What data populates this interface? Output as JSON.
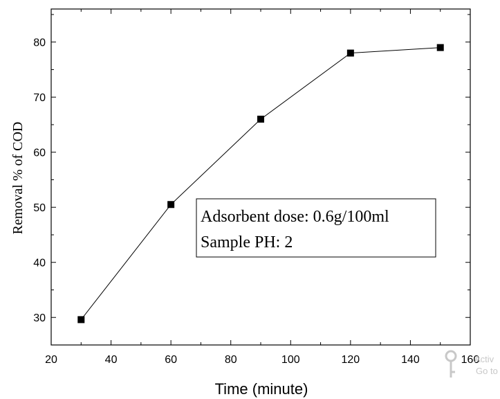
{
  "chart_data": {
    "type": "line",
    "x": [
      30,
      60,
      90,
      120,
      150
    ],
    "series": [
      {
        "values": [
          29.6,
          50.5,
          66,
          78,
          79
        ],
        "color": "#000000",
        "marker": "square"
      }
    ],
    "xlabel": "Time (minute)",
    "ylabel": "Removal % of COD",
    "xlim": [
      20,
      160
    ],
    "ylim": [
      25,
      86
    ],
    "xticks": [
      20,
      40,
      60,
      80,
      100,
      120,
      140,
      160
    ],
    "yticks": [
      30,
      40,
      50,
      60,
      70,
      80
    ],
    "grid": false,
    "annotation": [
      "Adsorbent dose: 0.6g/100ml",
      "Sample PH: 2"
    ]
  },
  "watermark": {
    "line1": "Activ",
    "line2": "Go to"
  }
}
